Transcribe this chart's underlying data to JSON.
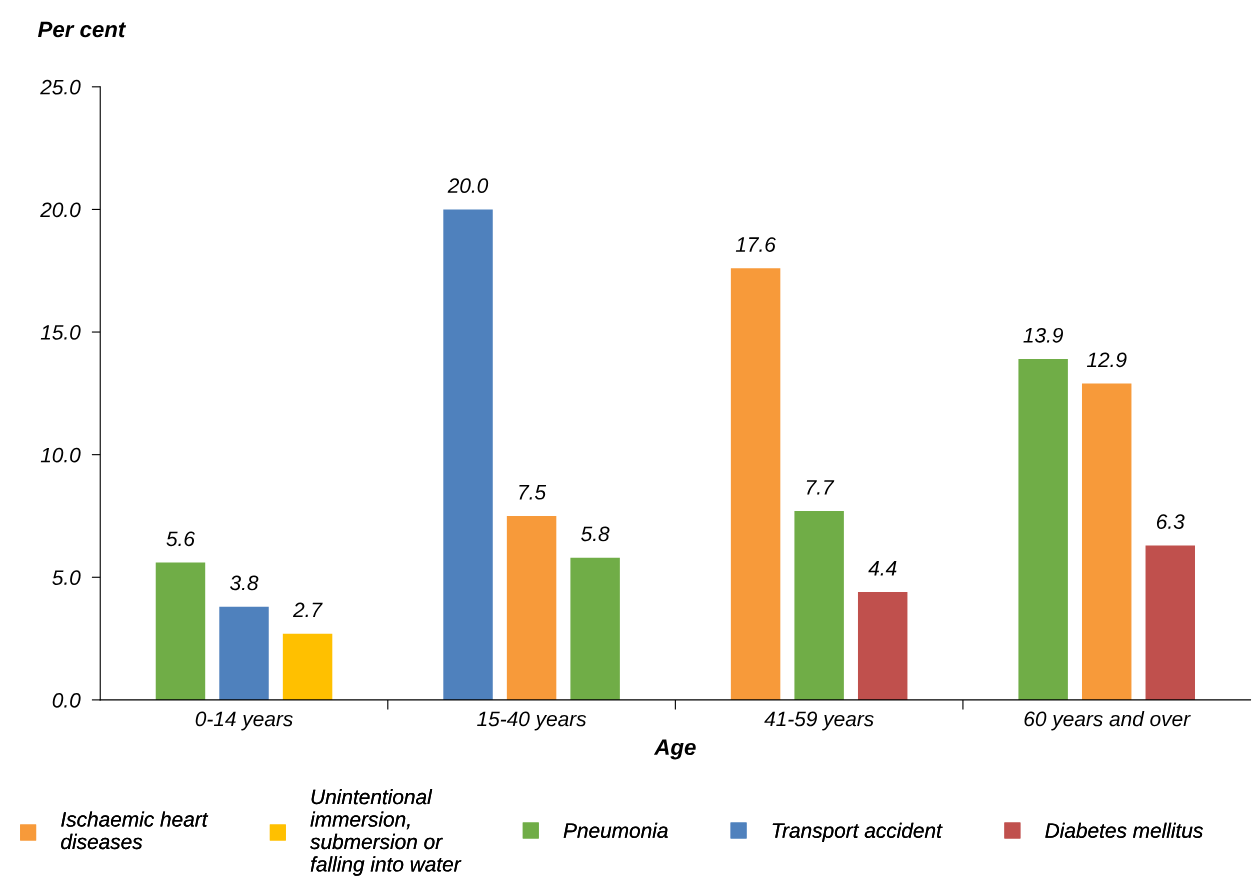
{
  "chart_data": {
    "type": "bar",
    "ylabel": "Per cent",
    "xlabel": "Age",
    "categories": [
      "0-14 years",
      "15-40 years",
      "41-59 years",
      "60 years and over"
    ],
    "series": [
      {
        "name": "Ischaemic heart\ndiseases",
        "color": "#f79a3a",
        "values": [
          null,
          7.5,
          17.6,
          12.9
        ],
        "value_labels": [
          null,
          "7.5",
          "17.6",
          "12.9"
        ]
      },
      {
        "name": "Unintentional\nimmersion,\nsubmersion or\nfalling into water",
        "color": "#ffc000",
        "values": [
          2.7,
          null,
          null,
          null
        ],
        "value_labels": [
          "2.7",
          null,
          null,
          null
        ]
      },
      {
        "name": "Pneumonia",
        "color": "#70ad47",
        "values": [
          5.6,
          5.8,
          7.7,
          13.9
        ],
        "value_labels": [
          "5.6",
          "5.8",
          "7.7",
          "13.9"
        ]
      },
      {
        "name": "Transport accident",
        "color": "#4f81bd",
        "values": [
          3.8,
          20.0,
          null,
          null
        ],
        "value_labels": [
          "3.8",
          "20.0",
          null,
          null
        ]
      },
      {
        "name": "Diabetes mellitus",
        "color": "#c0504d",
        "values": [
          null,
          null,
          4.4,
          6.3
        ],
        "value_labels": [
          null,
          null,
          "4.4",
          "6.3"
        ]
      }
    ],
    "ylim": [
      0,
      25
    ],
    "yticks": [
      {
        "value": 0,
        "label": "0.0"
      },
      {
        "value": 5,
        "label": "5.0"
      },
      {
        "value": 10,
        "label": "10.0"
      },
      {
        "value": 15,
        "label": "15.0"
      },
      {
        "value": 20,
        "label": "20.0"
      },
      {
        "value": 25,
        "label": "25.0"
      }
    ],
    "grid": false,
    "legend": "bottom"
  }
}
